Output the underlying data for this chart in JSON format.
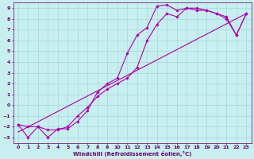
{
  "background_color": "#c8eef0",
  "grid_color": "#aadddd",
  "line_color": "#aa00aa",
  "marker_color": "#aa00aa",
  "xlabel": "Windchill (Refroidissement éolien,°C)",
  "xlabel_color": "#660066",
  "tick_color": "#660066",
  "xlim": [
    -0.5,
    23.5
  ],
  "ylim": [
    -3.5,
    9.5
  ],
  "xticks": [
    0,
    1,
    2,
    3,
    4,
    5,
    6,
    7,
    8,
    9,
    10,
    11,
    12,
    13,
    14,
    15,
    16,
    17,
    18,
    19,
    20,
    21,
    22,
    23
  ],
  "yticks": [
    -3,
    -2,
    -1,
    0,
    1,
    2,
    3,
    4,
    5,
    6,
    7,
    8,
    9
  ],
  "series1_x": [
    0,
    1,
    2,
    3,
    4,
    5,
    6,
    7,
    8,
    9,
    10,
    11,
    12,
    13,
    14,
    15,
    16,
    17,
    18,
    19,
    20,
    21,
    22,
    23
  ],
  "series1_y": [
    -1.8,
    -3.0,
    -2.0,
    -3.0,
    -2.2,
    -2.2,
    -1.5,
    -0.5,
    1.2,
    2.0,
    2.5,
    4.8,
    6.5,
    7.2,
    9.2,
    9.3,
    8.8,
    9.0,
    9.0,
    8.8,
    8.5,
    8.2,
    6.5,
    8.5
  ],
  "series2_x": [
    0,
    1,
    2,
    3,
    4,
    5,
    6,
    7,
    8,
    9,
    10,
    11,
    12,
    13,
    14,
    15,
    16,
    17,
    18,
    19,
    20,
    21,
    22,
    23
  ],
  "series2_y": [
    -1.8,
    -2.0,
    -2.0,
    -2.3,
    -2.3,
    -2.0,
    -1.0,
    -0.2,
    0.8,
    1.5,
    2.0,
    2.5,
    3.5,
    6.0,
    7.5,
    8.5,
    8.2,
    9.0,
    8.8,
    8.8,
    8.5,
    8.0,
    6.5,
    8.5
  ],
  "series3_x": [
    0,
    23
  ],
  "series3_y": [
    -2.5,
    8.5
  ]
}
